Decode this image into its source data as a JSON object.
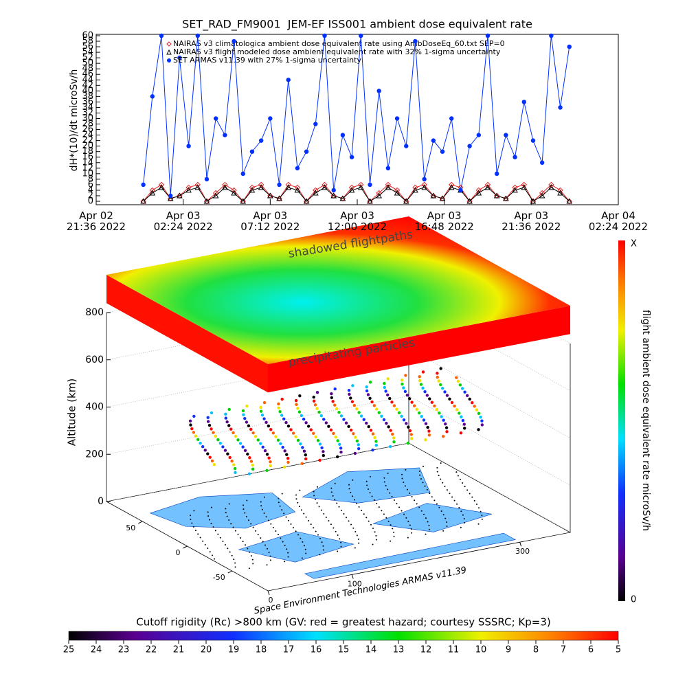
{
  "chart_data": [
    {
      "type": "line",
      "title": "SET_RAD_FM9001  JEM-EF ISS001 ambient dose equivalent rate",
      "y_label": "dH*(10)/dt microSv/h",
      "x": [
        "2022-04-03T00:12",
        "2022-04-03T00:42",
        "2022-04-03T01:12",
        "2022-04-03T01:42",
        "2022-04-03T02:12",
        "2022-04-03T02:42",
        "2022-04-03T03:12",
        "2022-04-03T03:42",
        "2022-04-03T04:12",
        "2022-04-03T04:42",
        "2022-04-03T05:12",
        "2022-04-03T05:42",
        "2022-04-03T06:12",
        "2022-04-03T06:42",
        "2022-04-03T07:12",
        "2022-04-03T07:42",
        "2022-04-03T08:12",
        "2022-04-03T08:42",
        "2022-04-03T09:12",
        "2022-04-03T09:42",
        "2022-04-03T10:12",
        "2022-04-03T10:42",
        "2022-04-03T11:12",
        "2022-04-03T11:42",
        "2022-04-03T12:12",
        "2022-04-03T12:42",
        "2022-04-03T13:12",
        "2022-04-03T13:42",
        "2022-04-03T14:12",
        "2022-04-03T14:42",
        "2022-04-03T15:12",
        "2022-04-03T15:42",
        "2022-04-03T16:12",
        "2022-04-03T16:42",
        "2022-04-03T17:12",
        "2022-04-03T17:42",
        "2022-04-03T18:12",
        "2022-04-03T18:42",
        "2022-04-03T19:12",
        "2022-04-03T19:42",
        "2022-04-03T20:12",
        "2022-04-03T20:42",
        "2022-04-03T21:12",
        "2022-04-03T21:42",
        "2022-04-03T22:12",
        "2022-04-03T22:42",
        "2022-04-03T23:12",
        "2022-04-03T23:42"
      ],
      "series": [
        {
          "name": "NAIRAS v3 climatologica ambient dose equivalent rate using AmbDoseEq_60.txt SEP=0",
          "color": "#e02020",
          "marker": "diamond",
          "values": [
            0,
            4,
            6,
            1,
            2,
            5,
            6,
            0,
            3,
            6,
            4,
            0,
            5,
            6,
            2,
            1,
            6,
            5,
            0,
            4,
            6,
            2,
            1,
            5,
            6,
            0,
            3,
            6,
            4,
            0,
            5,
            6,
            2,
            1,
            6,
            5,
            0,
            4,
            6,
            2,
            1,
            5,
            6,
            0,
            3,
            6,
            4,
            0
          ]
        },
        {
          "name": "NAIRAS v3 flight modeled dose ambient equivalent rate with 32% 1-sigma uncertainty",
          "color": "#000000",
          "marker": "triangle",
          "values": [
            0,
            3,
            5,
            1,
            2,
            4,
            5,
            0,
            2,
            5,
            3,
            0,
            4,
            5,
            2,
            1,
            5,
            4,
            0,
            3,
            5,
            2,
            1,
            4,
            5,
            0,
            2,
            5,
            3,
            0,
            4,
            5,
            2,
            1,
            5,
            4,
            0,
            3,
            5,
            2,
            1,
            4,
            5,
            0,
            2,
            5,
            3,
            0
          ]
        },
        {
          "name": "SET ARMAS v11.39 with 27% 1-sigma uncertainty",
          "color": "#0030ff",
          "marker": "circle",
          "values": [
            6,
            38,
            60,
            2,
            52,
            20,
            60,
            8,
            30,
            24,
            58,
            10,
            18,
            22,
            30,
            6,
            44,
            12,
            18,
            28,
            60,
            4,
            24,
            16,
            60,
            6,
            40,
            12,
            30,
            20,
            58,
            8,
            22,
            18,
            30,
            4,
            20,
            24,
            60,
            10,
            24,
            16,
            36,
            22,
            14,
            60,
            34,
            56
          ]
        }
      ],
      "xlim": [
        "2022-04-02T21:36",
        "2022-04-04T02:24"
      ],
      "xticks": [
        {
          "value": "2022-04-02T21:36",
          "label": "Apr 02\n21:36 2022"
        },
        {
          "value": "2022-04-03T02:24",
          "label": "Apr 03\n02:24 2022"
        },
        {
          "value": "2022-04-03T07:12",
          "label": "Apr 03\n07:12 2022"
        },
        {
          "value": "2022-04-03T12:00",
          "label": "Apr 03\n12:00 2022"
        },
        {
          "value": "2022-04-03T16:48",
          "label": "Apr 03\n16:48 2022"
        },
        {
          "value": "2022-04-03T21:36",
          "label": "Apr 03\n21:36 2022"
        },
        {
          "value": "2022-04-04T02:24",
          "label": "Apr 04\n02:24 2022"
        }
      ],
      "ylim": [
        0,
        60
      ],
      "yticks": [
        0,
        2,
        4,
        6,
        8,
        10,
        12,
        14,
        16,
        18,
        20,
        22,
        24,
        26,
        28,
        30,
        32,
        34,
        36,
        38,
        40,
        42,
        44,
        46,
        48,
        50,
        52,
        54,
        56,
        58,
        60
      ]
    },
    {
      "type": "surface3d",
      "z_label": "Altitude (km)",
      "zlim": [
        0,
        800
      ],
      "zticks": [
        0,
        200,
        400,
        600,
        800
      ],
      "lat_lim": [
        -90,
        90
      ],
      "lat_ticks": [
        50,
        0,
        -50
      ],
      "lon_lim": [
        0,
        360
      ],
      "lon_ticks": [
        0,
        100,
        300
      ],
      "annotations": [
        "shadowed flightpaths",
        "precipitating particles"
      ],
      "credit": "Space Environment Technologies ARMAS v11.39",
      "colorbar": {
        "label": "flight ambient dose equivalent rate microSv/h",
        "max_label": "X",
        "min_label": 0
      }
    },
    {
      "type": "colorbar",
      "title": "Cutoff rigidity (Rc) >800 km (GV: red = greatest hazard; courtesy SSSRC; Kp=3)",
      "clim": [
        25,
        5
      ],
      "ticks": [
        25,
        24,
        23,
        22,
        21,
        20,
        19,
        18,
        17,
        16,
        15,
        14,
        13,
        12,
        11,
        10,
        9,
        8,
        7,
        6,
        5
      ]
    }
  ]
}
